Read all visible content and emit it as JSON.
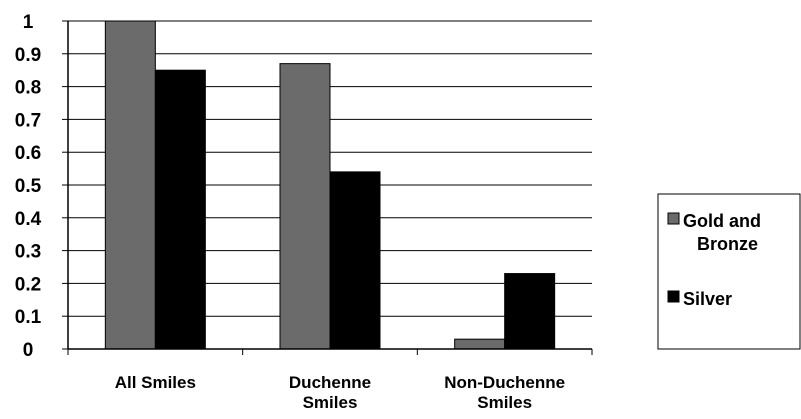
{
  "chart_data": {
    "type": "bar",
    "categories": [
      [
        "All Smiles"
      ],
      [
        "Duchenne",
        "Smiles"
      ],
      [
        "Non-Duchenne",
        "Smiles"
      ]
    ],
    "series": [
      {
        "name": [
          "Gold and",
          "Bronze"
        ],
        "values": [
          1.0,
          0.87,
          0.03
        ],
        "color": "#6b6b6b"
      },
      {
        "name": [
          "Silver"
        ],
        "values": [
          0.85,
          0.54,
          0.23
        ],
        "color": "#000000"
      }
    ],
    "yticks": [
      "0",
      "0.1",
      "0.2",
      "0.3",
      "0.4",
      "0.5",
      "0.6",
      "0.7",
      "0.8",
      "0.9",
      "1"
    ],
    "ylim": [
      0,
      1
    ],
    "grid": true,
    "legend_position": "right",
    "xlabel": "",
    "ylabel": "",
    "title": ""
  }
}
